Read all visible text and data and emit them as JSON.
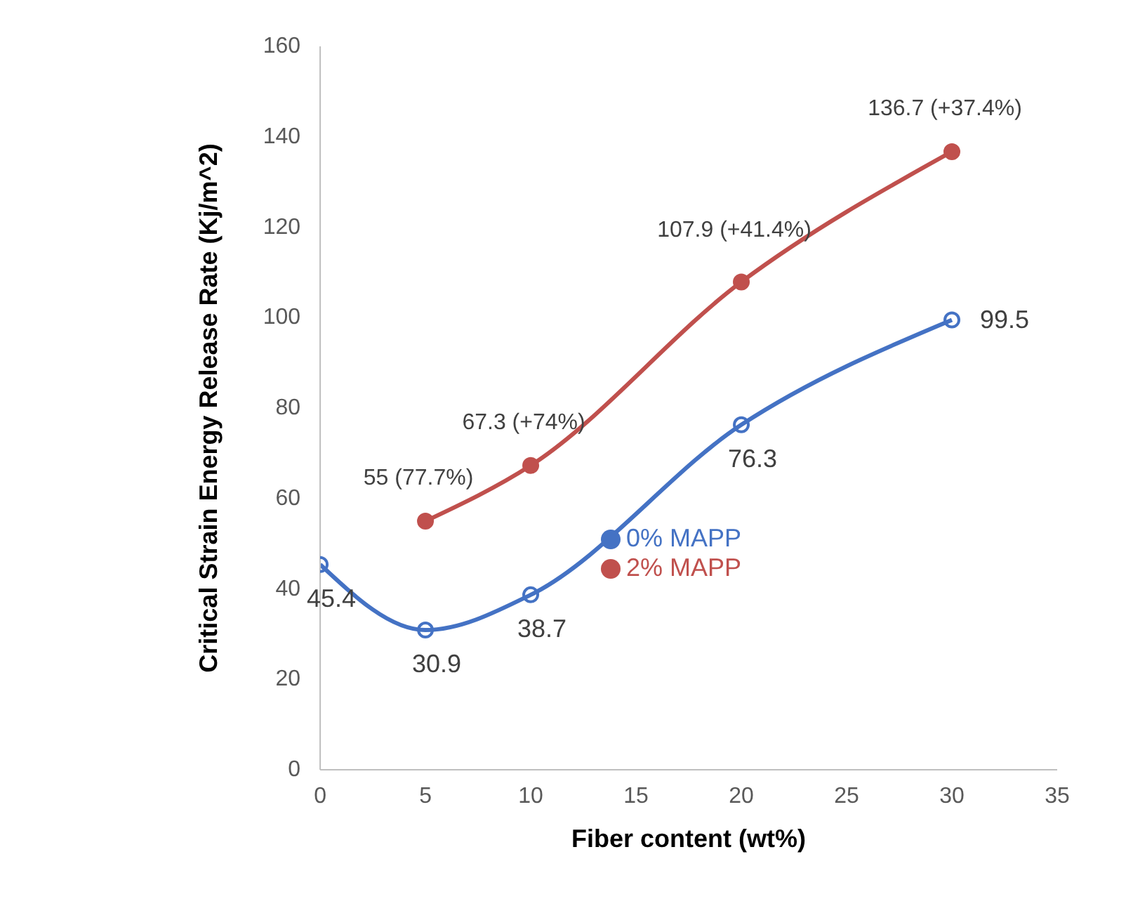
{
  "chart_data": {
    "type": "line",
    "xlabel": "Fiber content (wt%)",
    "ylabel": "Critical Strain Energy Release Rate (Kj/m^2)",
    "xlim": [
      0,
      35
    ],
    "xticks": [
      0,
      5,
      10,
      15,
      20,
      25,
      30,
      35
    ],
    "ylim": [
      0,
      160
    ],
    "yticks": [
      0,
      20,
      40,
      60,
      80,
      100,
      120,
      140,
      160
    ],
    "grid": false,
    "legend": "right",
    "marker": "circle",
    "series": [
      {
        "name": "0% MAPP",
        "color": "#4472c4",
        "x": [
          0,
          5,
          10,
          20,
          30
        ],
        "values": [
          45.4,
          30.9,
          38.7,
          76.3,
          99.5
        ],
        "value_labels": [
          "45.4",
          "30.9",
          "38.7",
          "76.3",
          "99.5"
        ]
      },
      {
        "name": "2% MAPP",
        "color": "#c0504d",
        "x": [
          5,
          10,
          20,
          30
        ],
        "values": [
          55,
          67.3,
          107.9,
          136.7
        ],
        "value_labels": [
          "55 (77.7%)",
          "67.3 (+74%)",
          "107.9 (+41.4%)",
          "136.7 (+37.4%)"
        ]
      }
    ]
  }
}
